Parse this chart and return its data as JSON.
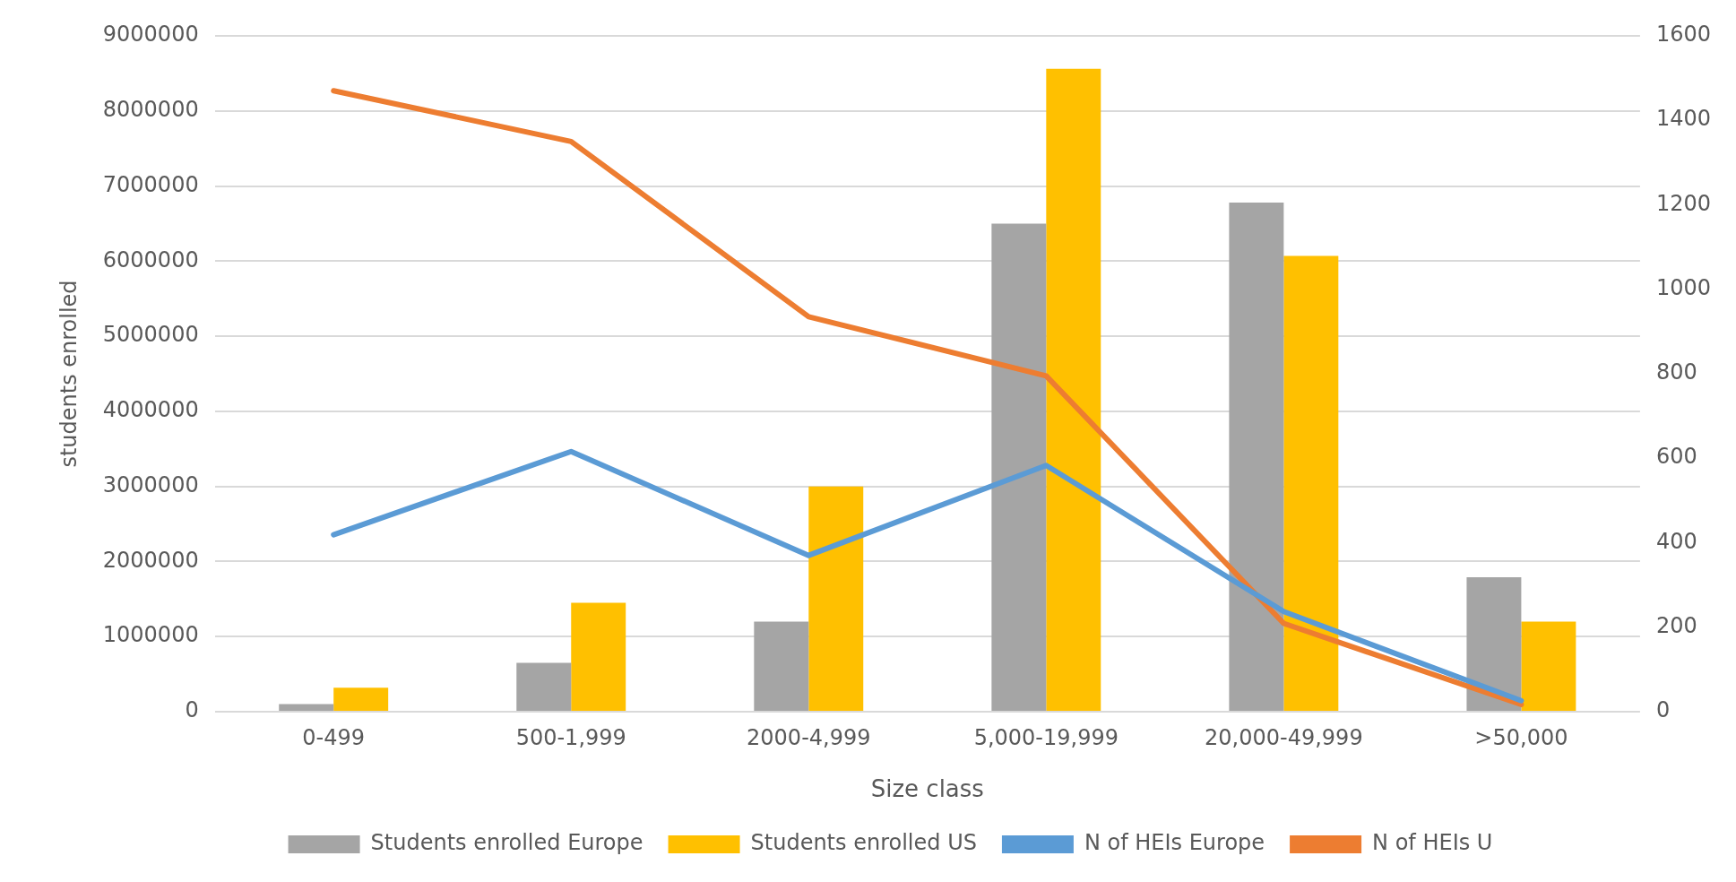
{
  "chart_data": {
    "type": "bar",
    "xlabel": "Size class",
    "ylabel": "students enrolled",
    "categories": [
      "0-499",
      "500-1,999",
      "2000-4,999",
      "5,000-19,999",
      "20,000-49,999",
      ">50,000"
    ],
    "series": [
      {
        "name": "Students enrolled Europe",
        "color": "#a5a5a5",
        "values": [
          100000,
          650000,
          1200000,
          6500000,
          6780000,
          1790000
        ]
      },
      {
        "name": "Students enrolled US",
        "color": "#ffc000",
        "values": [
          320000,
          1450000,
          3000000,
          8560000,
          6070000,
          1200000
        ]
      },
      {
        "name": "N of HEIs Europe",
        "type": "line",
        "axis": "y2",
        "color": "#5b9bd5",
        "values": [
          419,
          616,
          370,
          583,
          237,
          26
        ]
      },
      {
        "name": "N of HEIs U",
        "type": "line",
        "axis": "y2",
        "color": "#ed7d31",
        "values": [
          1470,
          1350,
          935,
          795,
          209,
          17
        ]
      }
    ],
    "ylim": [
      0,
      9000000
    ],
    "yticks": [
      0,
      1000000,
      2000000,
      3000000,
      4000000,
      5000000,
      6000000,
      7000000,
      8000000,
      9000000
    ],
    "y2lim": [
      0,
      1600
    ],
    "y2ticks": [
      0,
      200,
      400,
      600,
      800,
      1000,
      1200,
      1400,
      1600
    ],
    "grid": "y",
    "legend": "bottom",
    "marker": "none",
    "line_style": "solid"
  }
}
